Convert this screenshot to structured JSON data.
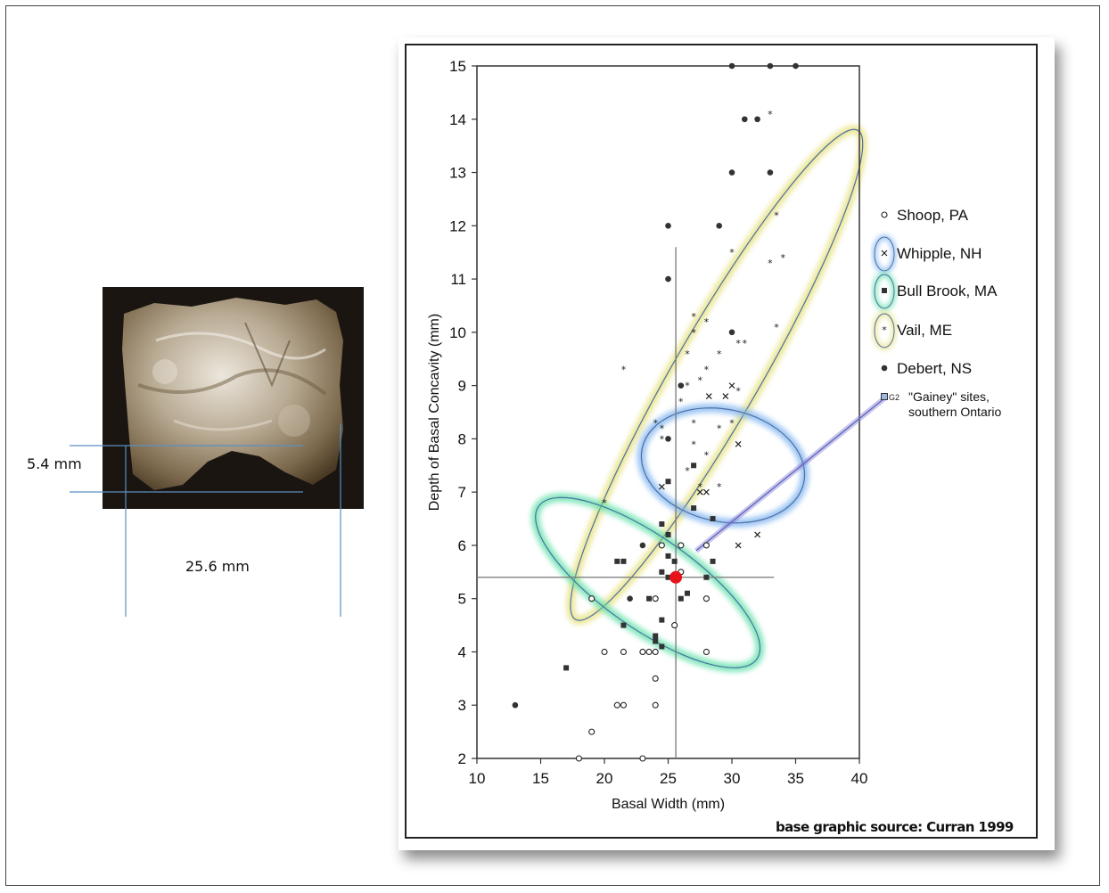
{
  "measurements": {
    "depth_label": "5.4 mm",
    "width_label": "25.6 mm"
  },
  "credit": "base graphic source: Curran 1999",
  "colors": {
    "yellow_ellipse": "#e6e07a",
    "green_ellipse": "#5fe0a8",
    "blue_ellipse": "#7fb4f0",
    "highlight_point": "#e8141b",
    "gainey_line": "#8a7fd8"
  },
  "legend": [
    {
      "label": "Shoop, PA",
      "marker": "open-circle",
      "ring": ""
    },
    {
      "label": "Whipple, NH",
      "marker": "x",
      "ring": "blue"
    },
    {
      "label": "Bull Brook, MA",
      "marker": "square",
      "ring": "green"
    },
    {
      "label": "Vail, ME",
      "marker": "star",
      "ring": "yellow"
    },
    {
      "label": "Debert, NS",
      "marker": "dot",
      "ring": ""
    },
    {
      "label": "\"Gainey\" sites,",
      "label2": "southern Ontario",
      "marker": "small-square",
      "code": "G2",
      "ring": ""
    }
  ],
  "chart_data": {
    "type": "scatter",
    "xlabel": "Basal Width (mm)",
    "ylabel": "Depth of Basal Concavity (mm)",
    "xlim": [
      10,
      40
    ],
    "ylim": [
      2,
      15
    ],
    "xticks": [
      "10",
      "15",
      "20",
      "25",
      "30",
      "35",
      "40"
    ],
    "yticks": [
      "2",
      "3",
      "4",
      "5",
      "6",
      "7",
      "8",
      "9",
      "10",
      "11",
      "12",
      "13",
      "14",
      "15"
    ],
    "series": [
      {
        "name": "Shoop, PA",
        "marker": "open-circle",
        "points": [
          [
            18,
            2
          ],
          [
            19,
            2.5
          ],
          [
            23,
            2
          ],
          [
            21,
            3
          ],
          [
            21.5,
            3
          ],
          [
            24,
            3
          ],
          [
            20,
            4
          ],
          [
            21.5,
            4
          ],
          [
            23,
            4
          ],
          [
            23.5,
            4
          ],
          [
            24,
            4
          ],
          [
            28,
            4
          ],
          [
            19,
            5
          ],
          [
            24,
            5
          ],
          [
            28,
            5
          ],
          [
            24,
            3.5
          ],
          [
            25.5,
            4.5
          ],
          [
            26,
            5.5
          ],
          [
            26,
            6
          ],
          [
            28,
            6
          ],
          [
            24.5,
            6
          ]
        ]
      },
      {
        "name": "Whipple, NH",
        "marker": "x",
        "points": [
          [
            24.5,
            7.1
          ],
          [
            27.5,
            7
          ],
          [
            28,
            7
          ],
          [
            30,
            9
          ],
          [
            29.5,
            8.8
          ],
          [
            30.5,
            7.9
          ],
          [
            30.5,
            6
          ],
          [
            32,
            6.2
          ],
          [
            28.2,
            8.8
          ]
        ]
      },
      {
        "name": "Bull Brook, MA",
        "marker": "square",
        "points": [
          [
            17,
            3.7
          ],
          [
            21,
            5.7
          ],
          [
            21.5,
            5.7
          ],
          [
            21.5,
            4.5
          ],
          [
            23.5,
            5
          ],
          [
            24.5,
            5.5
          ],
          [
            24.5,
            6.4
          ],
          [
            25,
            6.2
          ],
          [
            25,
            5.8
          ],
          [
            24,
            4.3
          ],
          [
            24.5,
            4.1
          ],
          [
            25,
            7.2
          ],
          [
            25,
            5.4
          ],
          [
            26,
            5
          ],
          [
            27,
            7.5
          ],
          [
            28,
            5.4
          ],
          [
            28.5,
            5.7
          ],
          [
            28.5,
            6.5
          ],
          [
            27,
            6.7
          ],
          [
            25.5,
            5.7
          ],
          [
            26.5,
            5.1
          ],
          [
            24.5,
            4.6
          ],
          [
            24,
            4.2
          ]
        ]
      },
      {
        "name": "Vail, ME",
        "marker": "star",
        "points": [
          [
            33,
            14.1
          ],
          [
            33,
            11.3
          ],
          [
            34,
            11.4
          ],
          [
            33.5,
            12.2
          ],
          [
            30,
            11.5
          ],
          [
            33.5,
            10.1
          ],
          [
            27,
            10.3
          ],
          [
            27,
            10
          ],
          [
            28,
            10.2
          ],
          [
            30.5,
            9.8
          ],
          [
            31,
            9.8
          ],
          [
            26.5,
            9.6
          ],
          [
            29,
            9.6
          ],
          [
            28,
            9.3
          ],
          [
            27.5,
            9.1
          ],
          [
            30.5,
            8.9
          ],
          [
            26,
            8.7
          ],
          [
            26.5,
            9
          ],
          [
            24,
            8.3
          ],
          [
            24.5,
            8.2
          ],
          [
            24.5,
            8
          ],
          [
            27,
            8.3
          ],
          [
            29,
            8.2
          ],
          [
            30,
            8.3
          ],
          [
            27,
            7.9
          ],
          [
            28,
            7.7
          ],
          [
            29,
            7.1
          ],
          [
            27.5,
            7.1
          ],
          [
            26.5,
            7.4
          ],
          [
            21.5,
            9.3
          ],
          [
            20,
            6.8
          ]
        ]
      },
      {
        "name": "Debert, NS",
        "marker": "dot",
        "points": [
          [
            30,
            15
          ],
          [
            33,
            15
          ],
          [
            35,
            15
          ],
          [
            31,
            14
          ],
          [
            32,
            14
          ],
          [
            30,
            13
          ],
          [
            33,
            13
          ],
          [
            25,
            12
          ],
          [
            29,
            12
          ],
          [
            25,
            11
          ],
          [
            30,
            10
          ],
          [
            26,
            9
          ],
          [
            25,
            8
          ],
          [
            23,
            6
          ],
          [
            22,
            5
          ],
          [
            13,
            3
          ]
        ]
      }
    ],
    "highlight": {
      "x": 25.6,
      "y": 5.4
    },
    "crosshair": {
      "x": 25.6,
      "y": 5.4
    },
    "ellipses": [
      "Vail, ME",
      "Bull Brook, MA",
      "Whipple, NH"
    ]
  }
}
